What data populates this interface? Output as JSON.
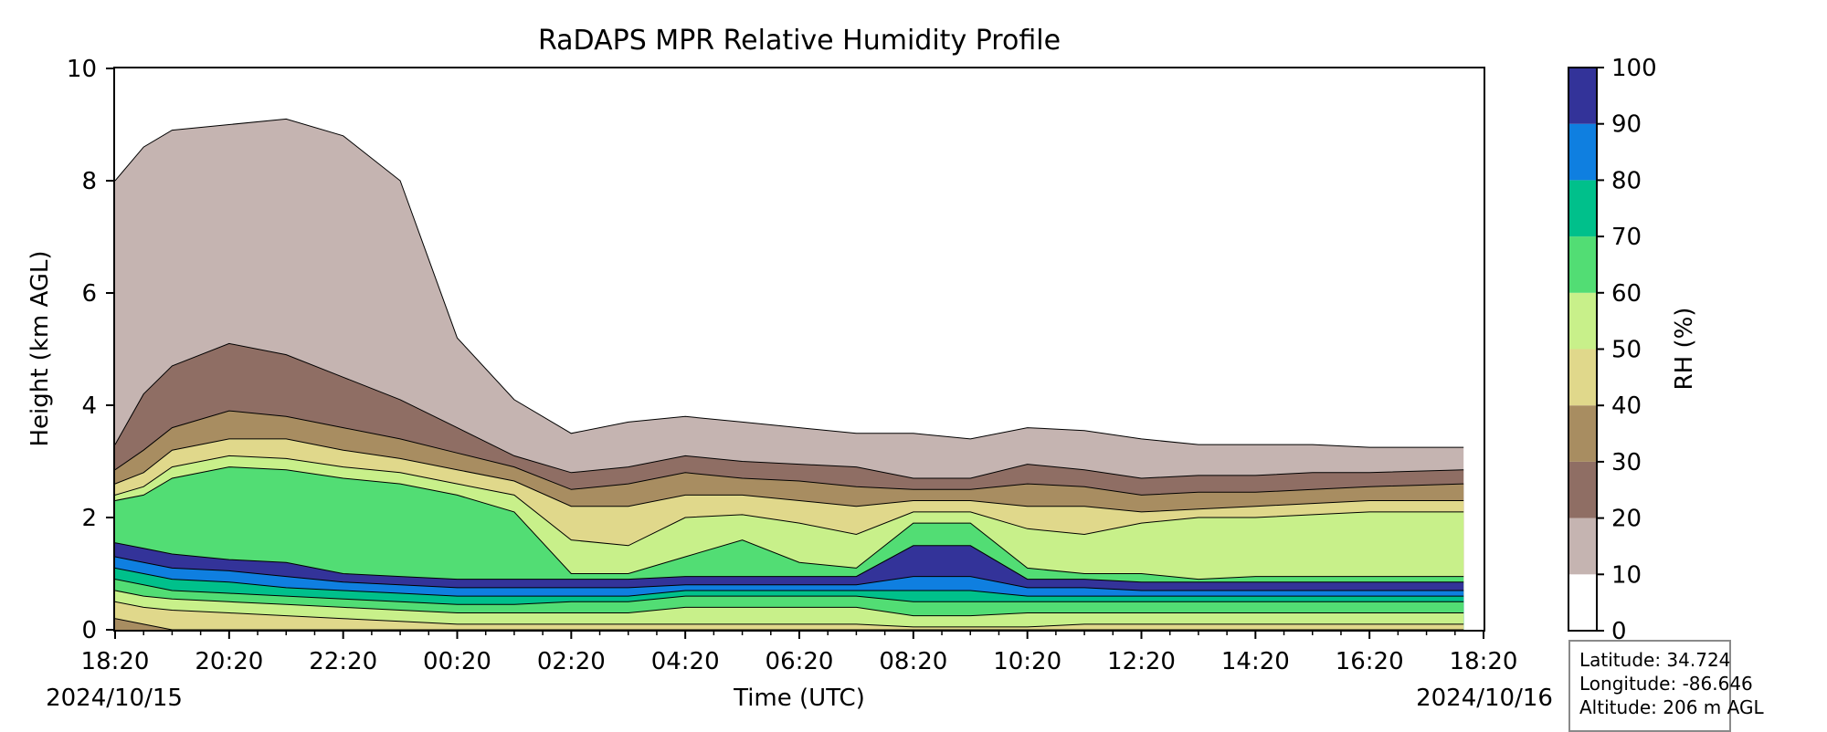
{
  "chart_data": {
    "type": "contourf",
    "title": "RaDAPS MPR Relative Humidity Profile",
    "xlabel": "Time (UTC)",
    "ylabel": "Height (km AGL)",
    "x_ticks": [
      "18:20",
      "20:20",
      "22:20",
      "00:20",
      "02:20",
      "04:20",
      "06:20",
      "08:20",
      "10:20",
      "12:20",
      "14:20",
      "16:20",
      "18:20"
    ],
    "x_start_date": "2024/10/15",
    "x_end_date": "2024/10/16",
    "x_range_hours": [
      0,
      24
    ],
    "data_end_hours": 23.65,
    "ylim": [
      0,
      10
    ],
    "y_ticks": [
      0,
      2,
      4,
      6,
      8,
      10
    ],
    "colorbar": {
      "label": "RH (%)",
      "levels": [
        0,
        10,
        20,
        30,
        40,
        50,
        60,
        70,
        80,
        90,
        100
      ],
      "colors": [
        "#ffffff",
        "#c5b4b1",
        "#8f6e64",
        "#a88d61",
        "#e0d88b",
        "#c8f08a",
        "#52dd74",
        "#00c08b",
        "#0f7fe0",
        "#333399"
      ]
    },
    "profiles": [
      {
        "t": 0,
        "b": [
          0.2,
          0.5,
          0.7,
          0.9,
          1.1,
          1.3,
          1.55,
          2.3,
          2.4,
          2.6,
          2.85,
          3.3,
          8.0
        ]
      },
      {
        "t": 0.5,
        "b": [
          0.1,
          0.4,
          0.6,
          0.8,
          1.0,
          1.2,
          1.45,
          2.4,
          2.55,
          2.8,
          3.2,
          4.2,
          8.6
        ]
      },
      {
        "t": 1.0,
        "b": [
          0,
          0.35,
          0.55,
          0.7,
          0.9,
          1.1,
          1.35,
          2.7,
          2.9,
          3.2,
          3.6,
          4.7,
          8.9
        ]
      },
      {
        "t": 2.0,
        "b": [
          0,
          0.3,
          0.5,
          0.65,
          0.85,
          1.05,
          1.25,
          2.9,
          3.1,
          3.4,
          3.9,
          5.1,
          9.0
        ]
      },
      {
        "t": 3.0,
        "b": [
          0,
          0.25,
          0.45,
          0.6,
          0.75,
          0.95,
          1.2,
          2.85,
          3.05,
          3.4,
          3.8,
          4.9,
          9.1
        ]
      },
      {
        "t": 4.0,
        "b": [
          0,
          0.2,
          0.4,
          0.55,
          0.7,
          0.85,
          1.0,
          2.7,
          2.9,
          3.2,
          3.6,
          4.5,
          8.8
        ]
      },
      {
        "t": 5.0,
        "b": [
          0,
          0.15,
          0.35,
          0.5,
          0.65,
          0.8,
          0.95,
          2.6,
          2.8,
          3.05,
          3.4,
          4.1,
          8.0
        ]
      },
      {
        "t": 6.0,
        "b": [
          0,
          0.1,
          0.3,
          0.45,
          0.6,
          0.75,
          0.9,
          2.4,
          2.6,
          2.85,
          3.15,
          3.6,
          5.2
        ]
      },
      {
        "t": 7.0,
        "b": [
          0,
          0.1,
          0.3,
          0.45,
          0.6,
          0.75,
          0.9,
          2.1,
          2.4,
          2.65,
          2.9,
          3.1,
          4.1
        ]
      },
      {
        "t": 8.0,
        "b": [
          0,
          0.1,
          0.3,
          0.5,
          0.6,
          0.75,
          0.9,
          1.0,
          1.6,
          2.2,
          2.5,
          2.8,
          3.5
        ]
      },
      {
        "t": 9.0,
        "b": [
          0,
          0.1,
          0.3,
          0.5,
          0.6,
          0.75,
          0.9,
          1.0,
          1.5,
          2.2,
          2.6,
          2.9,
          3.7
        ]
      },
      {
        "t": 10.0,
        "b": [
          0,
          0.1,
          0.4,
          0.6,
          0.7,
          0.8,
          0.95,
          1.3,
          2.0,
          2.4,
          2.8,
          3.1,
          3.8
        ]
      },
      {
        "t": 11.0,
        "b": [
          0,
          0.1,
          0.4,
          0.6,
          0.7,
          0.8,
          0.95,
          1.6,
          2.05,
          2.4,
          2.7,
          3.0,
          3.7
        ]
      },
      {
        "t": 12.0,
        "b": [
          0,
          0.1,
          0.4,
          0.6,
          0.7,
          0.8,
          0.95,
          1.2,
          1.9,
          2.3,
          2.65,
          2.95,
          3.6
        ]
      },
      {
        "t": 13.0,
        "b": [
          0,
          0.1,
          0.4,
          0.6,
          0.7,
          0.8,
          0.95,
          1.1,
          1.7,
          2.2,
          2.55,
          2.9,
          3.5
        ]
      },
      {
        "t": 14.0,
        "b": [
          0,
          0.05,
          0.25,
          0.5,
          0.7,
          0.95,
          1.5,
          1.9,
          2.1,
          2.3,
          2.5,
          2.7,
          3.5
        ]
      },
      {
        "t": 15.0,
        "b": [
          0,
          0.05,
          0.25,
          0.5,
          0.7,
          0.95,
          1.5,
          1.9,
          2.1,
          2.3,
          2.5,
          2.7,
          3.4
        ]
      },
      {
        "t": 16.0,
        "b": [
          0,
          0.05,
          0.3,
          0.5,
          0.6,
          0.75,
          0.9,
          1.1,
          1.8,
          2.2,
          2.6,
          2.95,
          3.6
        ]
      },
      {
        "t": 17.0,
        "b": [
          0,
          0.1,
          0.3,
          0.5,
          0.6,
          0.75,
          0.9,
          1.0,
          1.7,
          2.2,
          2.55,
          2.85,
          3.55
        ]
      },
      {
        "t": 18.0,
        "b": [
          0,
          0.1,
          0.3,
          0.5,
          0.6,
          0.7,
          0.85,
          1.0,
          1.9,
          2.1,
          2.4,
          2.7,
          3.4
        ]
      },
      {
        "t": 19.0,
        "b": [
          0,
          0.1,
          0.3,
          0.5,
          0.6,
          0.7,
          0.85,
          0.9,
          2.0,
          2.15,
          2.45,
          2.75,
          3.3
        ]
      },
      {
        "t": 20.0,
        "b": [
          0,
          0.1,
          0.3,
          0.5,
          0.6,
          0.7,
          0.85,
          0.95,
          2.0,
          2.2,
          2.45,
          2.75,
          3.3
        ]
      },
      {
        "t": 21.0,
        "b": [
          0,
          0.1,
          0.3,
          0.5,
          0.6,
          0.7,
          0.85,
          0.95,
          2.05,
          2.25,
          2.5,
          2.8,
          3.3
        ]
      },
      {
        "t": 22.0,
        "b": [
          0,
          0.1,
          0.3,
          0.5,
          0.6,
          0.7,
          0.85,
          0.95,
          2.1,
          2.3,
          2.55,
          2.8,
          3.25
        ]
      },
      {
        "t": 23.65,
        "b": [
          0,
          0.1,
          0.3,
          0.5,
          0.6,
          0.7,
          0.85,
          0.95,
          2.1,
          2.3,
          2.6,
          2.85,
          3.25
        ]
      }
    ],
    "annotations": {
      "latitude": "Latitude: 34.724",
      "longitude": "Longitude: -86.646",
      "altitude": "Altitude: 206 m AGL"
    }
  }
}
